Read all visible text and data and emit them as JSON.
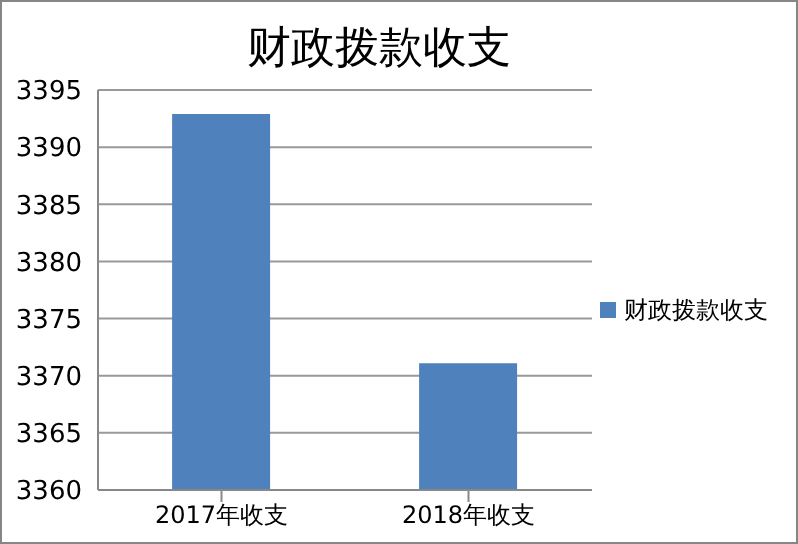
{
  "chart_data": {
    "type": "bar",
    "title": "财政拨款收支",
    "categories": [
      "2017年收支",
      "2018年收支"
    ],
    "series": [
      {
        "name": "财政拨款收支",
        "color": "#4f81bd",
        "values": [
          3392.9,
          3371.1
        ]
      }
    ],
    "ylim": [
      3360,
      3395
    ],
    "yticks": [
      3360,
      3365,
      3370,
      3375,
      3380,
      3385,
      3390,
      3395
    ],
    "grid": "y",
    "legend": "right"
  }
}
